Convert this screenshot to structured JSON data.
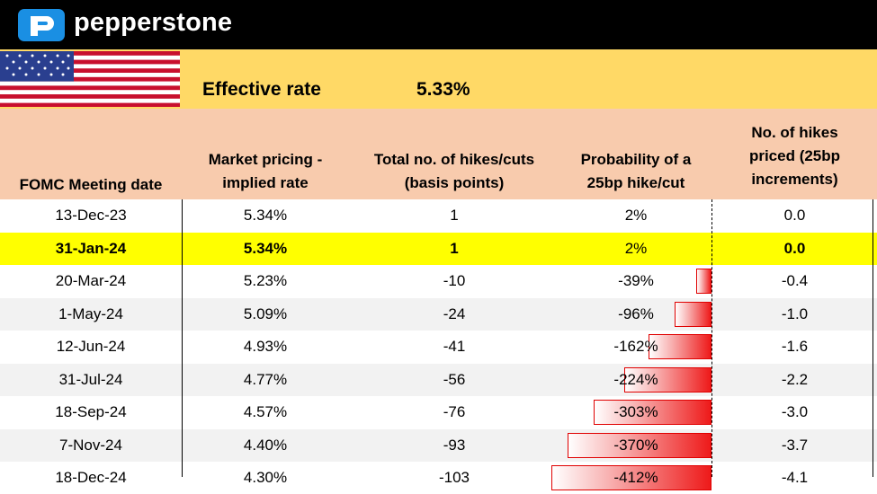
{
  "brand": {
    "name": "pepperstone"
  },
  "effective_rate": {
    "label": "Effective rate",
    "value": "5.33%"
  },
  "colors": {
    "header_bg": "#000000",
    "rate_band": "#FFD966",
    "table_header": "#F8CBAD",
    "highlight_row": "#FFFF00",
    "alt_row": "#F2F2F2",
    "bar_red": "#EE1A1A"
  },
  "table": {
    "headers": [
      [
        "FOMC Meeting date"
      ],
      [
        "Market pricing -",
        "implied rate"
      ],
      [
        "Total no. of hikes/cuts",
        "(basis points)"
      ],
      [
        "Probability of a",
        "25bp hike/cut"
      ],
      [
        "No. of hikes",
        "priced (25bp",
        "increments)"
      ]
    ],
    "rows": [
      {
        "date": "13-Dec-23",
        "rate": "5.34%",
        "bps": "1",
        "prob": "2%",
        "prob_value": 2,
        "hikes": "0.0"
      },
      {
        "date": "31-Jan-24",
        "rate": "5.34%",
        "bps": "1",
        "prob": "2%",
        "prob_value": 2,
        "hikes": "0.0",
        "highlight": true
      },
      {
        "date": "20-Mar-24",
        "rate": "5.23%",
        "bps": "-10",
        "prob": "-39%",
        "prob_value": -39,
        "hikes": "-0.4"
      },
      {
        "date": "1-May-24",
        "rate": "5.09%",
        "bps": "-24",
        "prob": "-96%",
        "prob_value": -96,
        "hikes": "-1.0"
      },
      {
        "date": "12-Jun-24",
        "rate": "4.93%",
        "bps": "-41",
        "prob": "-162%",
        "prob_value": -162,
        "hikes": "-1.6"
      },
      {
        "date": "31-Jul-24",
        "rate": "4.77%",
        "bps": "-56",
        "prob": "-224%",
        "prob_value": -224,
        "hikes": "-2.2"
      },
      {
        "date": "18-Sep-24",
        "rate": "4.57%",
        "bps": "-76",
        "prob": "-303%",
        "prob_value": -303,
        "hikes": "-3.0"
      },
      {
        "date": "7-Nov-24",
        "rate": "4.40%",
        "bps": "-93",
        "prob": "-370%",
        "prob_value": -370,
        "hikes": "-3.7"
      },
      {
        "date": "18-Dec-24",
        "rate": "4.30%",
        "bps": "-103",
        "prob": "-412%",
        "prob_value": -412,
        "hikes": "-4.1"
      }
    ]
  }
}
